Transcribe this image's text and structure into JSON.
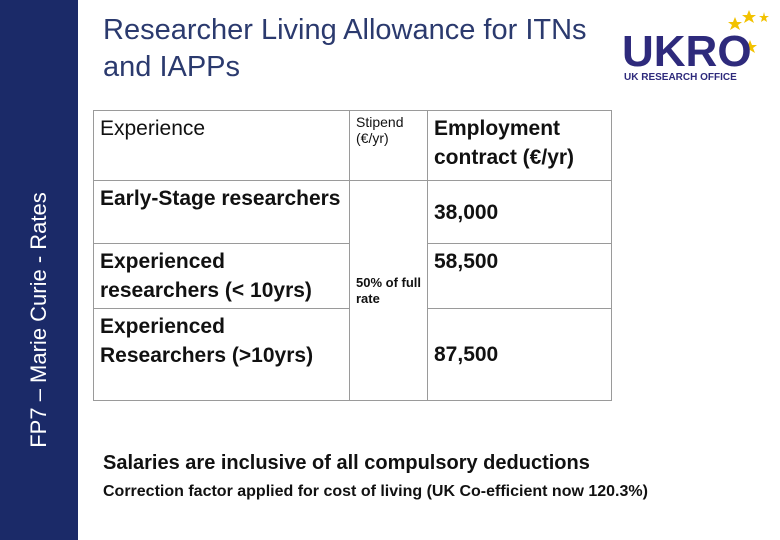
{
  "header": {
    "title": "Researcher Living Allowance for ITNs and IAPPs",
    "sidebar": "FP7 – Marie Curie - Rates"
  },
  "logo": {
    "text": "UKRO",
    "subtitle": "UK RESEARCH OFFICE"
  },
  "table": {
    "columns": [
      "Experience",
      "Stipend (€/yr)",
      "Employment contract (€/yr)"
    ],
    "stipend": "50% of full rate",
    "rows": [
      [
        "Early-Stage researchers",
        "38,000"
      ],
      [
        "Experienced researchers (< 10yrs)",
        "58,500"
      ],
      [
        "Experienced Researchers (>10yrs)",
        "87,500"
      ]
    ]
  },
  "notes": [
    "Salaries are inclusive of all compulsory deductions",
    "Correction factor applied for cost of living (UK Co-efficient now 120.3%)"
  ]
}
